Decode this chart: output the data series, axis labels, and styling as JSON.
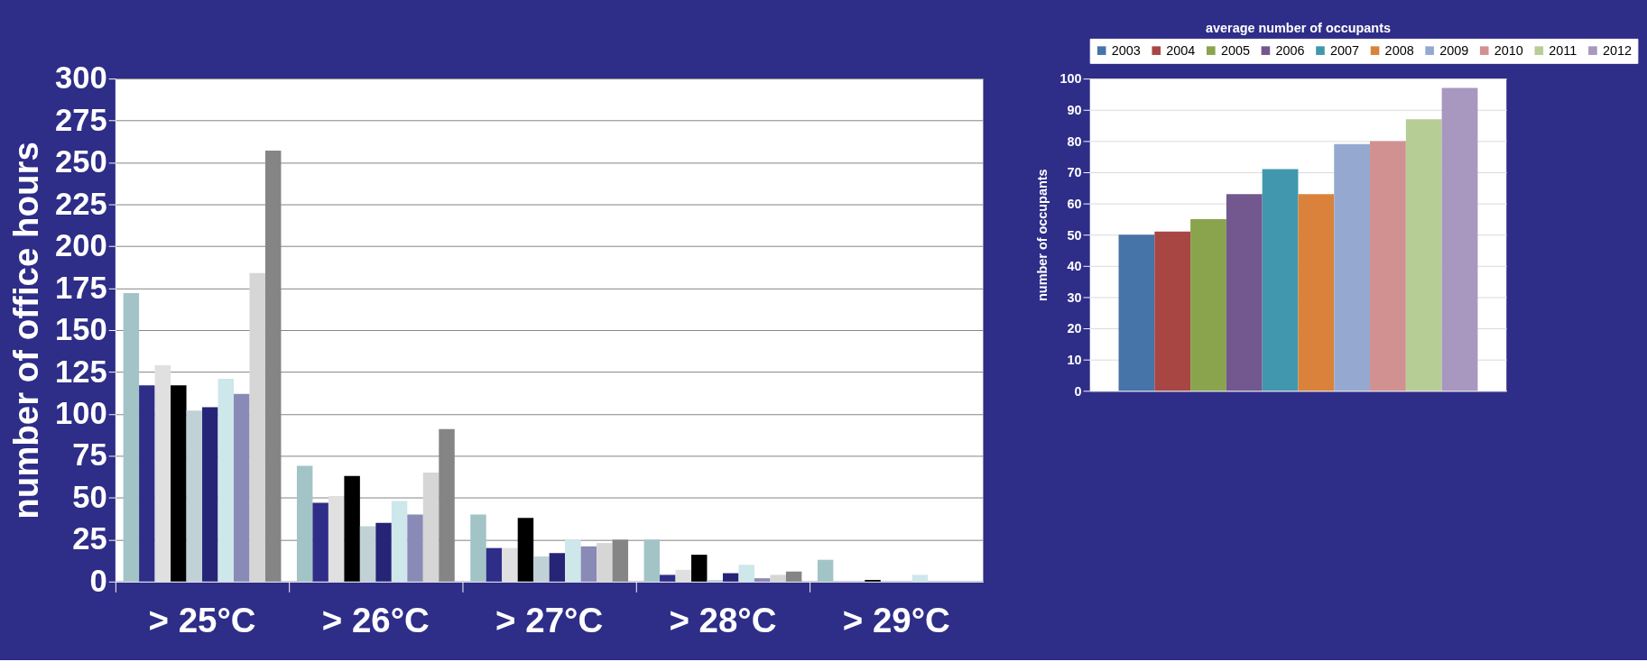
{
  "chart_data": [
    {
      "type": "bar",
      "ylabel": "number of office hours",
      "categories": [
        "> 25°C",
        "> 26°C",
        "> 27°C",
        "> 28°C",
        "> 29°C"
      ],
      "ylim": [
        0,
        300
      ],
      "yticks": [
        0,
        25,
        50,
        75,
        100,
        125,
        150,
        175,
        200,
        225,
        250,
        275,
        300
      ],
      "grid": "y",
      "series": [
        {
          "color": "#a3c4c6",
          "values": [
            172,
            69,
            40,
            25,
            13
          ]
        },
        {
          "color": "#2e2d88",
          "values": [
            117,
            47,
            20,
            4,
            0
          ]
        },
        {
          "color": "#e0e0e0",
          "values": [
            129,
            51,
            20,
            7,
            0
          ]
        },
        {
          "color": "#000000",
          "values": [
            117,
            63,
            38,
            16,
            1
          ]
        },
        {
          "color": "#c0d2d6",
          "values": [
            102,
            33,
            15,
            1,
            0
          ]
        },
        {
          "color": "#262476",
          "values": [
            104,
            35,
            17,
            5,
            0
          ]
        },
        {
          "color": "#cde7eb",
          "values": [
            121,
            48,
            25,
            10,
            4
          ]
        },
        {
          "color": "#8a8ab6",
          "values": [
            112,
            40,
            21,
            2,
            0
          ]
        },
        {
          "color": "#d6d6d6",
          "values": [
            184,
            65,
            23,
            4,
            0
          ]
        },
        {
          "color": "#858585",
          "values": [
            257,
            91,
            25,
            6,
            0
          ]
        }
      ]
    },
    {
      "type": "bar",
      "title": "average number of  occupants",
      "ylabel": "number of occupants",
      "categories": [
        null
      ],
      "ylim": [
        0,
        100
      ],
      "yticks": [
        0,
        10,
        20,
        30,
        40,
        50,
        60,
        70,
        80,
        90,
        100
      ],
      "grid": "y",
      "legend": "top",
      "tick_labels": "y",
      "series": [
        {
          "name": "2003",
          "color": "#4673a8",
          "values": [
            50
          ]
        },
        {
          "name": "2004",
          "color": "#a84644",
          "values": [
            51
          ]
        },
        {
          "name": "2005",
          "color": "#89a44d",
          "values": [
            55
          ]
        },
        {
          "name": "2006",
          "color": "#72588f",
          "values": [
            63
          ]
        },
        {
          "name": "2007",
          "color": "#4198ae",
          "values": [
            71
          ]
        },
        {
          "name": "2008",
          "color": "#da823c",
          "values": [
            63
          ]
        },
        {
          "name": "2009",
          "color": "#95a9d0",
          "values": [
            79
          ]
        },
        {
          "name": "2010",
          "color": "#d19191",
          "values": [
            80
          ]
        },
        {
          "name": "2011",
          "color": "#b7cd96",
          "values": [
            87
          ]
        },
        {
          "name": "2012",
          "color": "#a897bf",
          "values": [
            97
          ]
        }
      ]
    }
  ]
}
